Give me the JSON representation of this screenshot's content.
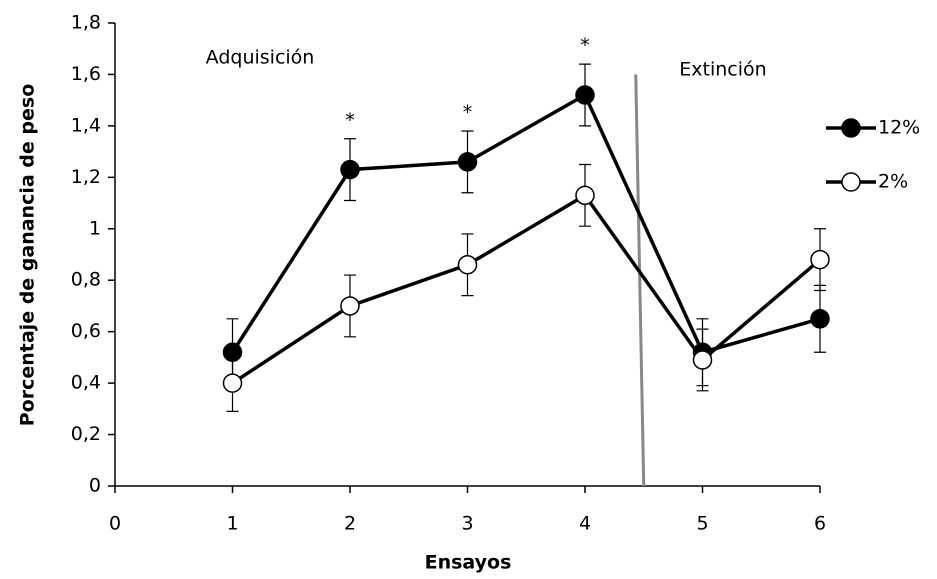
{
  "chart_data": {
    "type": "line",
    "xlabel": "Ensayos",
    "ylabel": "Porcentaje de ganancia de peso",
    "x": [
      1,
      2,
      3,
      4,
      5,
      6
    ],
    "series": [
      {
        "name": "12%",
        "color": "#000000",
        "marker_fill": "#000000",
        "values": [
          0.52,
          1.23,
          1.26,
          1.52,
          0.52,
          0.65
        ],
        "errors": [
          0.13,
          0.12,
          0.12,
          0.12,
          0.13,
          0.13
        ]
      },
      {
        "name": "2%",
        "color": "#000000",
        "marker_fill": "#ffffff",
        "values": [
          0.4,
          0.7,
          0.86,
          1.13,
          0.49,
          0.88
        ],
        "errors": [
          0.11,
          0.12,
          0.12,
          0.12,
          0.12,
          0.12
        ]
      }
    ],
    "xlim": [
      0,
      6
    ],
    "xticks": [
      0,
      1,
      2,
      3,
      4,
      5,
      6
    ],
    "ylim": [
      0,
      1.8
    ],
    "yticks": [
      0,
      {
        "value": 0.2,
        "label": "0,2"
      },
      {
        "value": 0.4,
        "label": "0,4"
      },
      {
        "value": 0.6,
        "label": "0,6"
      },
      {
        "value": 0.8,
        "label": "0,8"
      },
      1,
      {
        "value": 1.2,
        "label": "1,2"
      },
      {
        "value": 1.4,
        "label": "1,4"
      },
      {
        "value": 1.6,
        "label": "1,6"
      },
      {
        "value": 1.8,
        "label": "1,8"
      }
    ],
    "annotations": [
      "Adquisición",
      "Extinción"
    ],
    "significance": [
      {
        "x": 2,
        "label": "*"
      },
      {
        "x": 3,
        "label": "*"
      },
      {
        "x": 4,
        "label": "*"
      }
    ],
    "divider_x": 4.5,
    "legend": "right"
  }
}
